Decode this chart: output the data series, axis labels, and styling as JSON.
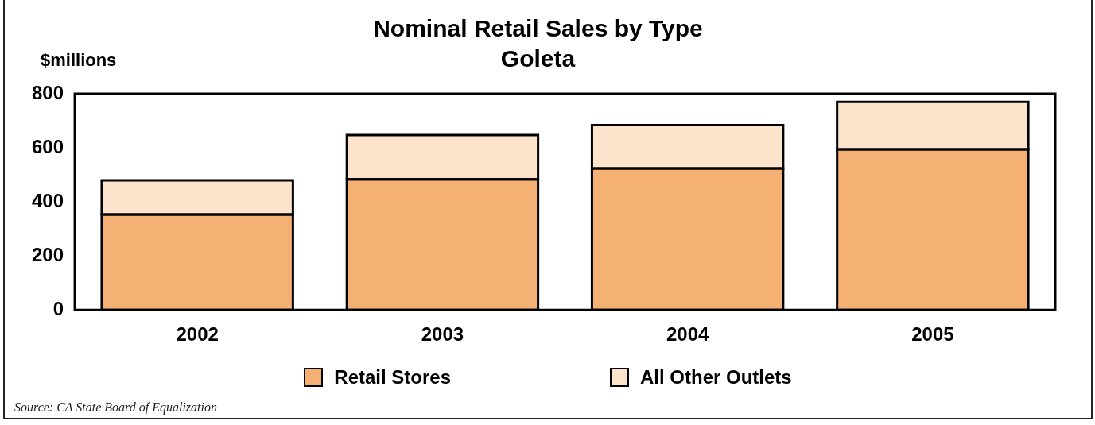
{
  "chart_data": {
    "type": "bar",
    "title": "Nominal Retail Sales by Type",
    "subtitle": "Goleta",
    "ylabel": "$millions",
    "categories": [
      "2002",
      "2003",
      "2004",
      "2005"
    ],
    "series": [
      {
        "name": "Retail Stores",
        "color": "#f5b073",
        "values": [
          353,
          483,
          524,
          594
        ]
      },
      {
        "name": "All Other Outlets",
        "color": "#fce4cc",
        "values": [
          127,
          164,
          160,
          176
        ]
      }
    ],
    "stacked": true,
    "ylim": [
      0,
      800
    ],
    "yticks": [
      0,
      200,
      400,
      600,
      800
    ],
    "grid": false,
    "legend": "bottom",
    "annotations": [
      "Source: CA State Board of Equalization"
    ]
  }
}
